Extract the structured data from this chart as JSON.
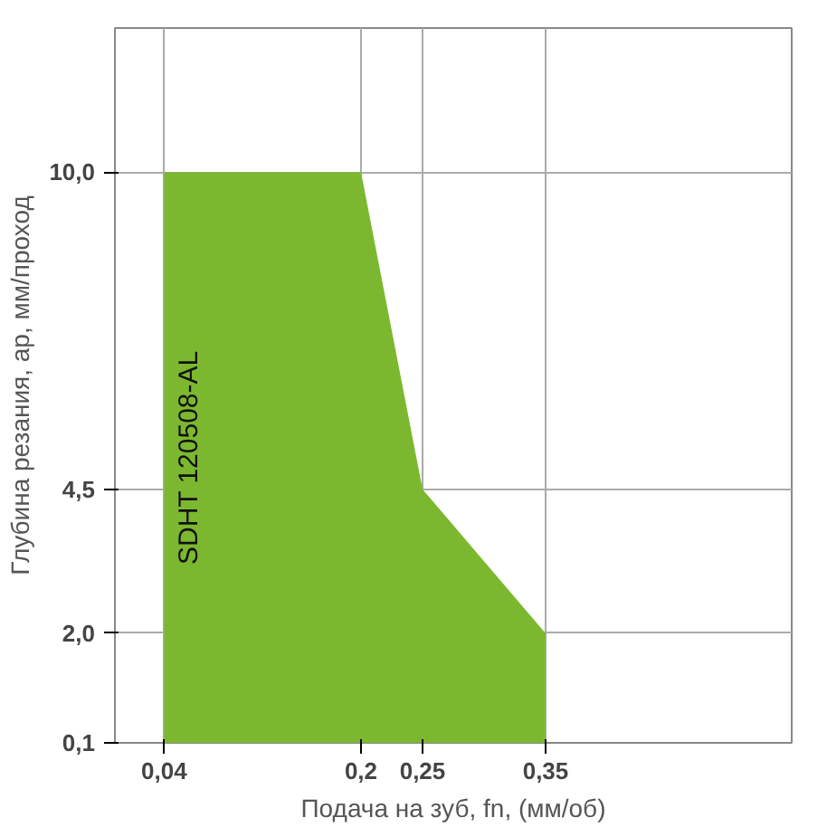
{
  "chart_data": {
    "type": "area",
    "xlabel": "Подача на зуб, fn, (мм/об)",
    "ylabel": "Глубина резания, ap, мм/проход",
    "x": [
      0.04,
      0.2,
      0.25,
      0.35
    ],
    "series": [
      {
        "color": "#7cb82f",
        "values": [
          10.0,
          10.0,
          4.5,
          2.0
        ]
      }
    ],
    "xlim": [
      0,
      0.55
    ],
    "ylim": [
      0.1,
      12.5
    ],
    "xticks": [
      {
        "value": 0.04,
        "label": "0,04"
      },
      {
        "value": 0.2,
        "label": "0,2"
      },
      {
        "value": 0.25,
        "label": "0,25"
      },
      {
        "value": 0.35,
        "label": "0,35"
      }
    ],
    "yticks": [
      {
        "value": 0.1,
        "label": "0,1"
      },
      {
        "value": 2.0,
        "label": "2,0"
      },
      {
        "value": 4.5,
        "label": "4,5"
      },
      {
        "value": 10.0,
        "label": "10,0"
      }
    ],
    "grid": true,
    "annotations": [
      "SDHT 120508-AL"
    ]
  }
}
